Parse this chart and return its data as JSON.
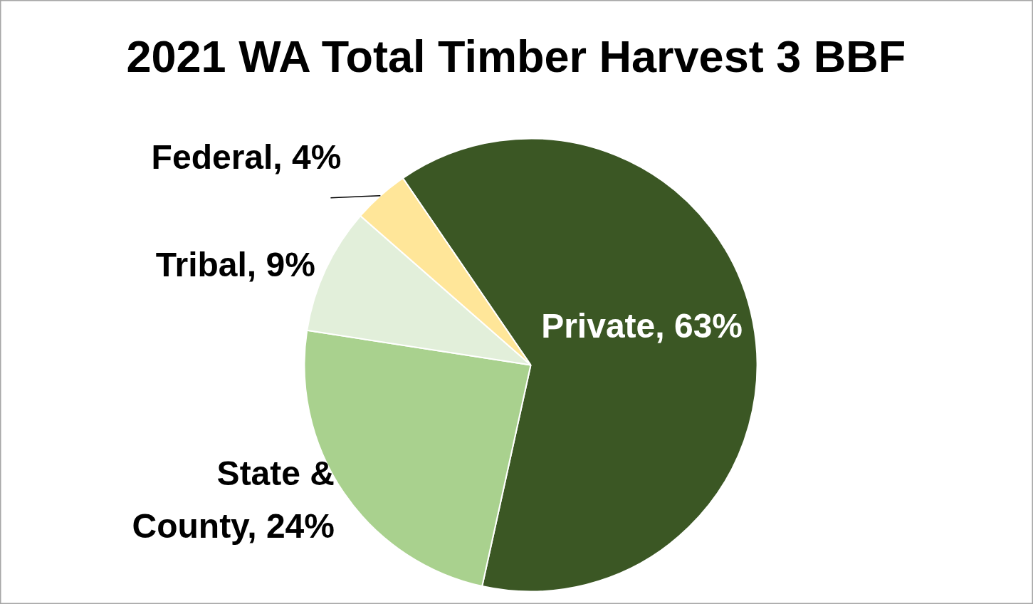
{
  "chart_data": {
    "type": "pie",
    "title": "2021 WA Total Timber Harvest 3 BBF",
    "categories": [
      "Private",
      "State & County",
      "Tribal",
      "Federal"
    ],
    "values": [
      63,
      24,
      9,
      4
    ],
    "colors": [
      "#3b5724",
      "#a9d18e",
      "#e2efda",
      "#ffe699"
    ],
    "value_labels": [
      "63%",
      "24%",
      "9%",
      "4%"
    ]
  }
}
